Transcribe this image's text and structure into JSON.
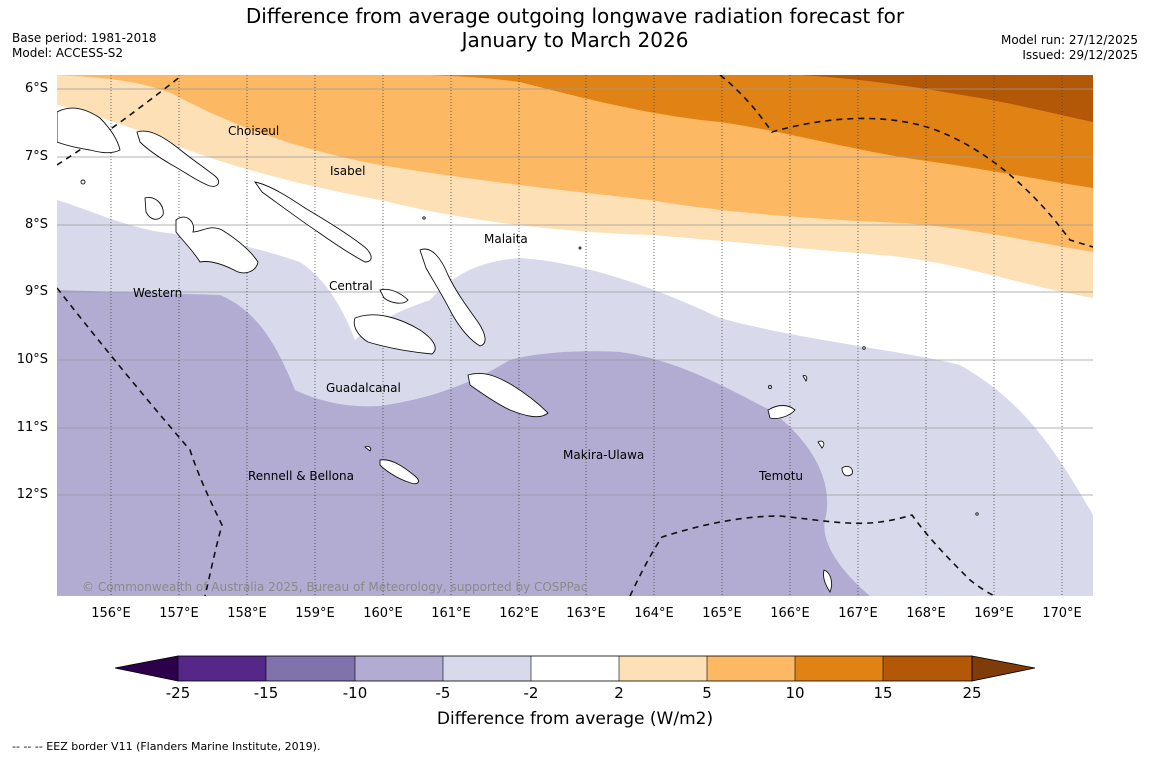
{
  "title_line1": "Difference from average outgoing longwave radiation forecast for",
  "title_line2": "January to March 2026",
  "base_period": "Base period: 1981-2018",
  "model": "Model: ACCESS-S2",
  "model_run": "Model run: 27/12/2025",
  "issued": "Issued: 29/12/2025",
  "copyright": "© Commonwealth of Australia 2025, Bureau of Meteorology, supported by COSPPac",
  "lat_labels": [
    "6°S",
    "7°S",
    "8°S",
    "9°S",
    "10°S",
    "11°S",
    "12°S"
  ],
  "lon_labels": [
    "156°E",
    "157°E",
    "158°E",
    "159°E",
    "160°E",
    "161°E",
    "162°E",
    "163°E",
    "164°E",
    "165°E",
    "166°E",
    "167°E",
    "168°E",
    "169°E",
    "170°E"
  ],
  "provinces": [
    "Choiseul",
    "Isabel",
    "Malaita",
    "Western",
    "Central",
    "Guadalcanal",
    "Makira-Ulawa",
    "Rennell & Bellona",
    "Temotu"
  ],
  "colorbar": {
    "ticks": [
      "-25",
      "-15",
      "-10",
      "-5",
      "-2",
      "2",
      "5",
      "10",
      "15",
      "25"
    ],
    "colors": [
      "#542788",
      "#8073ac",
      "#b2abd2",
      "#d8daeb",
      "#ffffff",
      "#fee0b6",
      "#fdb863",
      "#e08214",
      "#b35806"
    ],
    "under_color": "#2d004b",
    "over_color": "#7f3b08",
    "label": "Difference from average (W/m2)"
  },
  "legend_note": "--  --  -- EEZ border V11 (Flanders Marine Institute, 2019)."
}
